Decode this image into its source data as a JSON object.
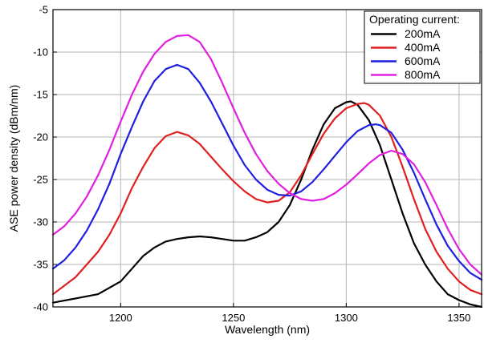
{
  "chart_data": {
    "type": "line",
    "xlabel": "Wavelength (nm)",
    "ylabel": "ASE power density (dBm/nm)",
    "xlim": [
      1170,
      1360
    ],
    "ylim": [
      -40,
      -5
    ],
    "xticks": [
      1200,
      1250,
      1300,
      1350
    ],
    "yticks": [
      -40,
      -35,
      -30,
      -25,
      -20,
      -15,
      -10,
      -5
    ],
    "grid": true,
    "legend": {
      "title": "Operating current:",
      "placement": "top-right"
    },
    "series": [
      {
        "name": "200mA",
        "color": "#000000",
        "points": [
          [
            1170,
            -39.5
          ],
          [
            1180,
            -39.0
          ],
          [
            1190,
            -38.5
          ],
          [
            1200,
            -37.0
          ],
          [
            1205,
            -35.5
          ],
          [
            1210,
            -34.0
          ],
          [
            1215,
            -33.0
          ],
          [
            1220,
            -32.3
          ],
          [
            1225,
            -32.0
          ],
          [
            1230,
            -31.8
          ],
          [
            1235,
            -31.7
          ],
          [
            1240,
            -31.8
          ],
          [
            1245,
            -32.0
          ],
          [
            1250,
            -32.2
          ],
          [
            1255,
            -32.2
          ],
          [
            1260,
            -31.8
          ],
          [
            1265,
            -31.2
          ],
          [
            1270,
            -30.0
          ],
          [
            1275,
            -28.0
          ],
          [
            1280,
            -25.0
          ],
          [
            1285,
            -21.5
          ],
          [
            1290,
            -18.5
          ],
          [
            1295,
            -16.6
          ],
          [
            1300,
            -15.9
          ],
          [
            1302,
            -15.8
          ],
          [
            1305,
            -16.2
          ],
          [
            1310,
            -18.0
          ],
          [
            1315,
            -21.0
          ],
          [
            1320,
            -25.0
          ],
          [
            1325,
            -29.0
          ],
          [
            1330,
            -32.5
          ],
          [
            1335,
            -35.0
          ],
          [
            1340,
            -37.0
          ],
          [
            1345,
            -38.5
          ],
          [
            1350,
            -39.2
          ],
          [
            1355,
            -39.7
          ],
          [
            1360,
            -40.0
          ]
        ]
      },
      {
        "name": "400mA",
        "color": "#e02020",
        "points": [
          [
            1170,
            -38.5
          ],
          [
            1175,
            -37.5
          ],
          [
            1180,
            -36.5
          ],
          [
            1185,
            -35.0
          ],
          [
            1190,
            -33.5
          ],
          [
            1195,
            -31.5
          ],
          [
            1200,
            -29.0
          ],
          [
            1205,
            -26.0
          ],
          [
            1210,
            -23.5
          ],
          [
            1215,
            -21.3
          ],
          [
            1220,
            -19.9
          ],
          [
            1225,
            -19.4
          ],
          [
            1230,
            -19.8
          ],
          [
            1235,
            -20.8
          ],
          [
            1240,
            -22.3
          ],
          [
            1245,
            -23.8
          ],
          [
            1250,
            -25.2
          ],
          [
            1255,
            -26.4
          ],
          [
            1260,
            -27.3
          ],
          [
            1265,
            -27.7
          ],
          [
            1270,
            -27.5
          ],
          [
            1275,
            -26.5
          ],
          [
            1280,
            -24.5
          ],
          [
            1285,
            -22.0
          ],
          [
            1290,
            -19.6
          ],
          [
            1295,
            -17.8
          ],
          [
            1300,
            -16.6
          ],
          [
            1305,
            -16.1
          ],
          [
            1308,
            -16.0
          ],
          [
            1310,
            -16.2
          ],
          [
            1315,
            -17.5
          ],
          [
            1320,
            -20.0
          ],
          [
            1325,
            -23.5
          ],
          [
            1330,
            -27.3
          ],
          [
            1335,
            -30.8
          ],
          [
            1340,
            -33.5
          ],
          [
            1345,
            -35.5
          ],
          [
            1350,
            -37.0
          ],
          [
            1355,
            -38.0
          ],
          [
            1360,
            -38.5
          ]
        ]
      },
      {
        "name": "600mA",
        "color": "#1f1fe0",
        "points": [
          [
            1170,
            -35.5
          ],
          [
            1175,
            -34.5
          ],
          [
            1180,
            -33.0
          ],
          [
            1185,
            -31.0
          ],
          [
            1190,
            -28.5
          ],
          [
            1195,
            -25.5
          ],
          [
            1200,
            -22.0
          ],
          [
            1205,
            -18.8
          ],
          [
            1210,
            -15.8
          ],
          [
            1215,
            -13.4
          ],
          [
            1220,
            -12.0
          ],
          [
            1225,
            -11.5
          ],
          [
            1230,
            -12.0
          ],
          [
            1235,
            -13.6
          ],
          [
            1240,
            -15.8
          ],
          [
            1245,
            -18.4
          ],
          [
            1250,
            -21.0
          ],
          [
            1255,
            -23.3
          ],
          [
            1260,
            -25.0
          ],
          [
            1265,
            -26.2
          ],
          [
            1270,
            -26.8
          ],
          [
            1275,
            -26.9
          ],
          [
            1280,
            -26.4
          ],
          [
            1285,
            -25.3
          ],
          [
            1290,
            -23.8
          ],
          [
            1295,
            -22.2
          ],
          [
            1300,
            -20.6
          ],
          [
            1305,
            -19.3
          ],
          [
            1310,
            -18.6
          ],
          [
            1313,
            -18.5
          ],
          [
            1315,
            -18.6
          ],
          [
            1320,
            -19.5
          ],
          [
            1325,
            -21.5
          ],
          [
            1330,
            -24.2
          ],
          [
            1335,
            -27.3
          ],
          [
            1340,
            -30.3
          ],
          [
            1345,
            -32.8
          ],
          [
            1350,
            -34.6
          ],
          [
            1355,
            -36.0
          ],
          [
            1360,
            -36.8
          ]
        ]
      },
      {
        "name": "800mA",
        "color": "#e020e0",
        "points": [
          [
            1170,
            -31.5
          ],
          [
            1175,
            -30.5
          ],
          [
            1180,
            -29.0
          ],
          [
            1185,
            -27.0
          ],
          [
            1190,
            -24.5
          ],
          [
            1195,
            -21.5
          ],
          [
            1200,
            -18.2
          ],
          [
            1205,
            -15.0
          ],
          [
            1210,
            -12.3
          ],
          [
            1215,
            -10.2
          ],
          [
            1220,
            -8.8
          ],
          [
            1225,
            -8.1
          ],
          [
            1230,
            -8.0
          ],
          [
            1235,
            -8.8
          ],
          [
            1240,
            -10.8
          ],
          [
            1245,
            -13.6
          ],
          [
            1250,
            -16.6
          ],
          [
            1255,
            -19.5
          ],
          [
            1260,
            -22.0
          ],
          [
            1265,
            -24.0
          ],
          [
            1270,
            -25.5
          ],
          [
            1275,
            -26.6
          ],
          [
            1280,
            -27.3
          ],
          [
            1285,
            -27.5
          ],
          [
            1290,
            -27.3
          ],
          [
            1295,
            -26.6
          ],
          [
            1300,
            -25.6
          ],
          [
            1305,
            -24.4
          ],
          [
            1310,
            -23.1
          ],
          [
            1315,
            -22.1
          ],
          [
            1320,
            -21.6
          ],
          [
            1325,
            -22.0
          ],
          [
            1330,
            -23.2
          ],
          [
            1335,
            -25.3
          ],
          [
            1340,
            -28.0
          ],
          [
            1345,
            -30.8
          ],
          [
            1350,
            -33.2
          ],
          [
            1355,
            -35.0
          ],
          [
            1360,
            -36.2
          ]
        ]
      }
    ]
  }
}
